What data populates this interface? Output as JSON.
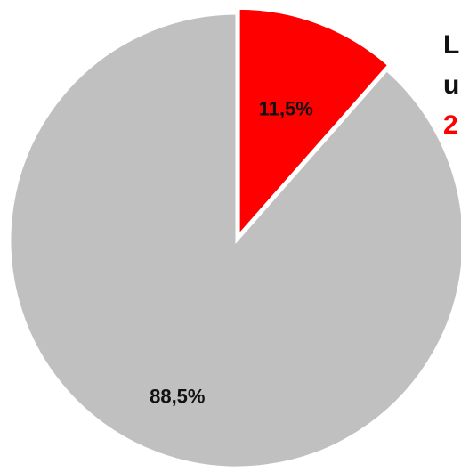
{
  "chart_data": {
    "type": "pie",
    "title": "",
    "slices": [
      {
        "label": "11,5%",
        "value": 11.5,
        "color": "#ff0000"
      },
      {
        "label": "88,5%",
        "value": 88.5,
        "color": "#c0c0c0"
      }
    ],
    "start": "top",
    "direction": "clockwise",
    "first_slice_exploded": true
  },
  "side_text": {
    "lines": [
      "L",
      "u",
      "2"
    ],
    "colors": [
      "#111111",
      "#111111",
      "#ff0000"
    ]
  }
}
